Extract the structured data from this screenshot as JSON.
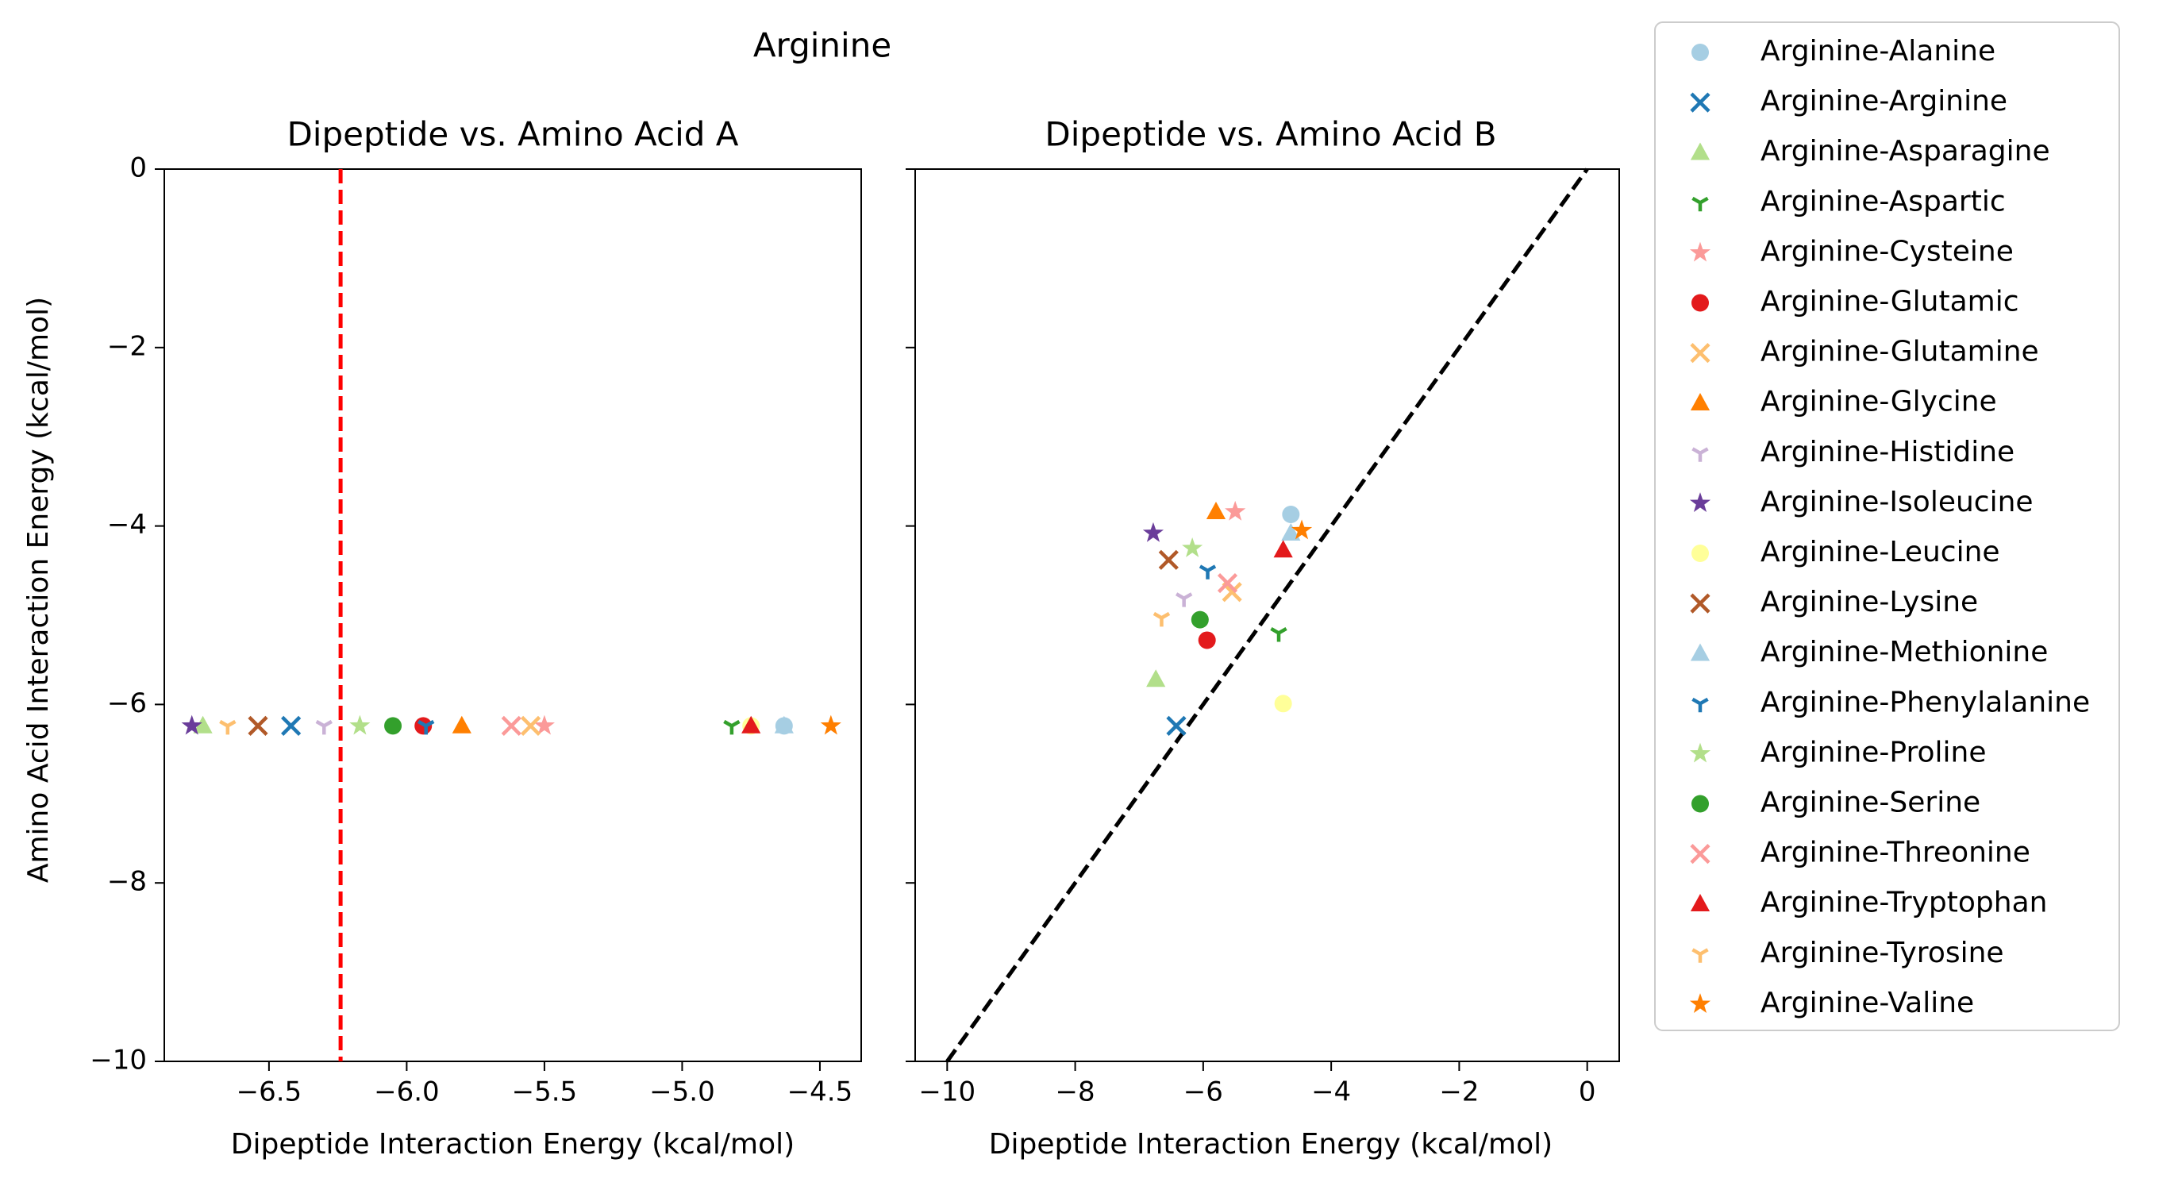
{
  "figure_title": "Arginine",
  "chart_data": [
    {
      "type": "scatter",
      "title": "Dipeptide vs. Amino Acid A",
      "xlabel": "Dipeptide Interaction Energy (kcal/mol)",
      "ylabel": "Amino Acid Interaction Energy (kcal/mol)",
      "xlim": [
        -6.88,
        -4.35
      ],
      "ylim": [
        -10,
        0
      ],
      "xticks": [
        -6.5,
        -6.0,
        -5.5,
        -5.0,
        -4.5
      ],
      "xtick_labels": [
        "−6.5",
        "−6.0",
        "−5.5",
        "−5.0",
        "−4.5"
      ],
      "yticks": [
        0,
        -2,
        -4,
        -6,
        -8,
        -10
      ],
      "ytick_labels": [
        "0",
        "−2",
        "−4",
        "−6",
        "−8",
        "−10"
      ],
      "reference_line": {
        "kind": "vertical",
        "x": -6.24,
        "color": "#ff0000",
        "style": "dashed"
      },
      "series": [
        {
          "name": "Arginine-Alanine",
          "x": -4.63,
          "y": -6.24
        },
        {
          "name": "Arginine-Arginine",
          "x": -6.42,
          "y": -6.24
        },
        {
          "name": "Arginine-Asparagine",
          "x": -6.74,
          "y": -6.24
        },
        {
          "name": "Arginine-Aspartic",
          "x": -4.82,
          "y": -6.24
        },
        {
          "name": "Arginine-Cysteine",
          "x": -5.5,
          "y": -6.24
        },
        {
          "name": "Arginine-Glutamic",
          "x": -5.94,
          "y": -6.24
        },
        {
          "name": "Arginine-Glutamine",
          "x": -5.55,
          "y": -6.24
        },
        {
          "name": "Arginine-Glycine",
          "x": -5.8,
          "y": -6.24
        },
        {
          "name": "Arginine-Histidine",
          "x": -6.3,
          "y": -6.24
        },
        {
          "name": "Arginine-Isoleucine",
          "x": -6.78,
          "y": -6.24
        },
        {
          "name": "Arginine-Leucine",
          "x": -4.75,
          "y": -6.24
        },
        {
          "name": "Arginine-Lysine",
          "x": -6.54,
          "y": -6.24
        },
        {
          "name": "Arginine-Methionine",
          "x": -4.63,
          "y": -6.24
        },
        {
          "name": "Arginine-Phenylalanine",
          "x": -5.93,
          "y": -6.24
        },
        {
          "name": "Arginine-Proline",
          "x": -6.17,
          "y": -6.24
        },
        {
          "name": "Arginine-Serine",
          "x": -6.05,
          "y": -6.24
        },
        {
          "name": "Arginine-Threonine",
          "x": -5.62,
          "y": -6.24
        },
        {
          "name": "Arginine-Tryptophan",
          "x": -4.75,
          "y": -6.24
        },
        {
          "name": "Arginine-Tyrosine",
          "x": -6.65,
          "y": -6.24
        },
        {
          "name": "Arginine-Valine",
          "x": -4.46,
          "y": -6.24
        }
      ]
    },
    {
      "type": "scatter",
      "title": "Dipeptide vs. Amino Acid B",
      "xlabel": "Dipeptide Interaction Energy (kcal/mol)",
      "xlim": [
        -10.5,
        0.5
      ],
      "ylim": [
        -10,
        0
      ],
      "xticks": [
        -10,
        -8,
        -6,
        -4,
        -2,
        0
      ],
      "xtick_labels": [
        "−10",
        "−8",
        "−6",
        "−4",
        "−2",
        "0"
      ],
      "yticks": [
        0,
        -2,
        -4,
        -6,
        -8,
        -10
      ],
      "reference_line": {
        "kind": "diagonal",
        "from": [
          -10,
          -10
        ],
        "to": [
          0,
          0
        ],
        "color": "#000000",
        "style": "dashed"
      },
      "series": [
        {
          "name": "Arginine-Alanine",
          "x": -4.63,
          "y": -3.87
        },
        {
          "name": "Arginine-Arginine",
          "x": -6.42,
          "y": -6.24
        },
        {
          "name": "Arginine-Asparagine",
          "x": -6.74,
          "y": -5.72
        },
        {
          "name": "Arginine-Aspartic",
          "x": -4.82,
          "y": -5.2
        },
        {
          "name": "Arginine-Cysteine",
          "x": -5.5,
          "y": -3.84
        },
        {
          "name": "Arginine-Glutamic",
          "x": -5.94,
          "y": -5.28
        },
        {
          "name": "Arginine-Glutamine",
          "x": -5.55,
          "y": -4.74
        },
        {
          "name": "Arginine-Glycine",
          "x": -5.8,
          "y": -3.84
        },
        {
          "name": "Arginine-Histidine",
          "x": -6.3,
          "y": -4.81
        },
        {
          "name": "Arginine-Isoleucine",
          "x": -6.78,
          "y": -4.08
        },
        {
          "name": "Arginine-Leucine",
          "x": -4.75,
          "y": -5.99
        },
        {
          "name": "Arginine-Lysine",
          "x": -6.54,
          "y": -4.38
        },
        {
          "name": "Arginine-Methionine",
          "x": -4.63,
          "y": -4.08
        },
        {
          "name": "Arginine-Phenylalanine",
          "x": -5.93,
          "y": -4.5
        },
        {
          "name": "Arginine-Proline",
          "x": -6.17,
          "y": -4.25
        },
        {
          "name": "Arginine-Serine",
          "x": -6.05,
          "y": -5.05
        },
        {
          "name": "Arginine-Threonine",
          "x": -5.62,
          "y": -4.64
        },
        {
          "name": "Arginine-Tryptophan",
          "x": -4.75,
          "y": -4.27
        },
        {
          "name": "Arginine-Tyrosine",
          "x": -6.65,
          "y": -5.03
        },
        {
          "name": "Arginine-Valine",
          "x": -4.46,
          "y": -4.05
        }
      ]
    }
  ],
  "legend": {
    "placement": "outside right",
    "entries": [
      {
        "label": "Arginine-Alanine",
        "marker": "circle",
        "color": "#a6cee3"
      },
      {
        "label": "Arginine-Arginine",
        "marker": "x",
        "color": "#1f78b4"
      },
      {
        "label": "Arginine-Asparagine",
        "marker": "triangle",
        "color": "#b2df8a"
      },
      {
        "label": "Arginine-Aspartic",
        "marker": "tri_down",
        "color": "#33a02c"
      },
      {
        "label": "Arginine-Cysteine",
        "marker": "star",
        "color": "#fb9a99"
      },
      {
        "label": "Arginine-Glutamic",
        "marker": "circle",
        "color": "#e31a1c"
      },
      {
        "label": "Arginine-Glutamine",
        "marker": "x",
        "color": "#fdbf6f"
      },
      {
        "label": "Arginine-Glycine",
        "marker": "triangle",
        "color": "#ff7f00"
      },
      {
        "label": "Arginine-Histidine",
        "marker": "tri_down",
        "color": "#cab2d6"
      },
      {
        "label": "Arginine-Isoleucine",
        "marker": "star",
        "color": "#6a3d9a"
      },
      {
        "label": "Arginine-Leucine",
        "marker": "circle",
        "color": "#ffff99"
      },
      {
        "label": "Arginine-Lysine",
        "marker": "x",
        "color": "#b15928"
      },
      {
        "label": "Arginine-Methionine",
        "marker": "triangle",
        "color": "#a6cee3"
      },
      {
        "label": "Arginine-Phenylalanine",
        "marker": "tri_down",
        "color": "#1f78b4"
      },
      {
        "label": "Arginine-Proline",
        "marker": "star",
        "color": "#b2df8a"
      },
      {
        "label": "Arginine-Serine",
        "marker": "circle",
        "color": "#33a02c"
      },
      {
        "label": "Arginine-Threonine",
        "marker": "x",
        "color": "#fb9a99"
      },
      {
        "label": "Arginine-Tryptophan",
        "marker": "triangle",
        "color": "#e31a1c"
      },
      {
        "label": "Arginine-Tyrosine",
        "marker": "tri_down",
        "color": "#fdbf6f"
      },
      {
        "label": "Arginine-Valine",
        "marker": "star",
        "color": "#ff7f00"
      }
    ]
  }
}
